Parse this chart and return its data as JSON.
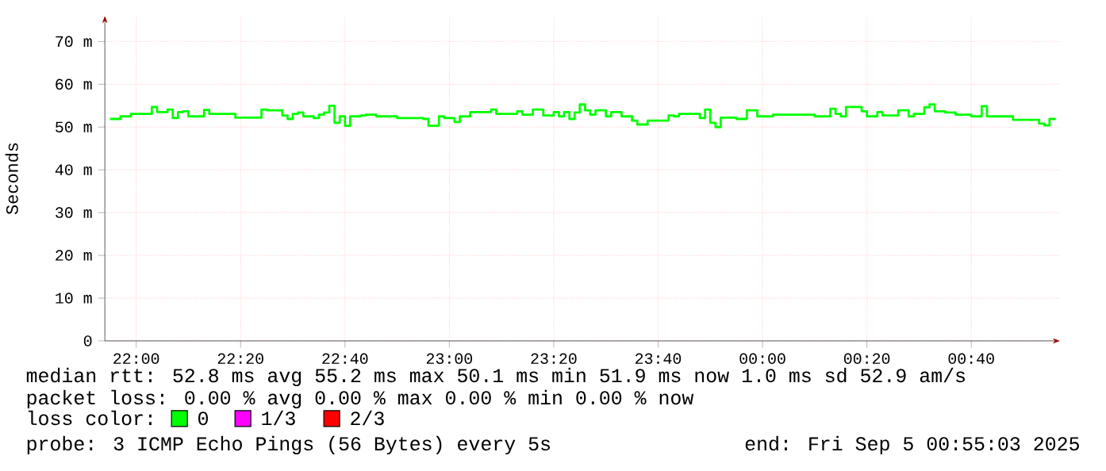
{
  "chart_data": {
    "type": "step",
    "ylabel": "Seconds",
    "x": [
      "2025-09-04T21:55",
      "2025-09-04T21:57",
      "2025-09-04T21:59",
      "2025-09-04T22:02",
      "2025-09-04T22:03",
      "2025-09-04T22:04",
      "2025-09-04T22:06",
      "2025-09-04T22:07",
      "2025-09-04T22:08",
      "2025-09-04T22:09",
      "2025-09-04T22:10",
      "2025-09-04T22:12",
      "2025-09-04T22:13",
      "2025-09-04T22:14",
      "2025-09-04T22:17",
      "2025-09-04T22:19",
      "2025-09-04T22:23",
      "2025-09-04T22:24",
      "2025-09-04T22:25",
      "2025-09-04T22:28",
      "2025-09-04T22:29",
      "2025-09-04T22:30",
      "2025-09-04T22:31",
      "2025-09-04T22:32",
      "2025-09-04T22:34",
      "2025-09-04T22:35",
      "2025-09-04T22:36",
      "2025-09-04T22:37",
      "2025-09-04T22:38",
      "2025-09-04T22:39",
      "2025-09-04T22:40",
      "2025-09-04T22:41",
      "2025-09-04T22:43",
      "2025-09-04T22:44",
      "2025-09-04T22:46",
      "2025-09-04T22:49",
      "2025-09-04T22:50",
      "2025-09-04T22:53",
      "2025-09-04T22:55",
      "2025-09-04T22:56",
      "2025-09-04T22:58",
      "2025-09-04T22:59",
      "2025-09-04T23:01",
      "2025-09-04T23:02",
      "2025-09-04T23:04",
      "2025-09-04T23:08",
      "2025-09-04T23:09",
      "2025-09-04T23:13",
      "2025-09-04T23:14",
      "2025-09-04T23:16",
      "2025-09-04T23:18",
      "2025-09-04T23:20",
      "2025-09-04T23:21",
      "2025-09-04T23:22",
      "2025-09-04T23:23",
      "2025-09-04T23:24",
      "2025-09-04T23:25",
      "2025-09-04T23:26",
      "2025-09-04T23:27",
      "2025-09-04T23:28",
      "2025-09-04T23:30",
      "2025-09-04T23:31",
      "2025-09-04T23:33",
      "2025-09-04T23:35",
      "2025-09-04T23:36",
      "2025-09-04T23:38",
      "2025-09-04T23:41",
      "2025-09-04T23:42",
      "2025-09-04T23:43",
      "2025-09-04T23:44",
      "2025-09-04T23:47",
      "2025-09-04T23:48",
      "2025-09-04T23:49",
      "2025-09-04T23:50",
      "2025-09-04T23:51",
      "2025-09-04T23:52",
      "2025-09-04T23:55",
      "2025-09-04T23:57",
      "2025-09-04T23:59",
      "2025-09-05T00:01",
      "2025-09-05T00:02",
      "2025-09-05T00:07",
      "2025-09-05T00:10",
      "2025-09-05T00:13",
      "2025-09-05T00:14",
      "2025-09-05T00:15",
      "2025-09-05T00:16",
      "2025-09-05T00:19",
      "2025-09-05T00:20",
      "2025-09-05T00:22",
      "2025-09-05T00:23",
      "2025-09-05T00:26",
      "2025-09-05T00:28",
      "2025-09-05T00:29",
      "2025-09-05T00:31",
      "2025-09-05T00:32",
      "2025-09-05T00:33",
      "2025-09-05T00:35",
      "2025-09-05T00:37",
      "2025-09-05T00:40",
      "2025-09-05T00:42",
      "2025-09-05T00:43",
      "2025-09-05T00:47",
      "2025-09-05T00:48",
      "2025-09-05T00:52",
      "2025-09-05T00:53",
      "2025-09-05T00:54",
      "2025-09-05T00:55",
      "2025-09-05T00:56"
    ],
    "series": [
      {
        "name": "0",
        "color": "#00ff00",
        "values": [
          51.9,
          52.5,
          53.1,
          53.1,
          54.7,
          53.5,
          54.1,
          52.1,
          53.5,
          53.7,
          52.5,
          52.5,
          54.0,
          53.1,
          53.1,
          52.2,
          52.2,
          54.1,
          53.9,
          52.7,
          51.9,
          53.1,
          53.4,
          52.5,
          52.1,
          52.9,
          53.4,
          55.0,
          51.0,
          52.5,
          50.3,
          52.5,
          52.7,
          52.9,
          52.5,
          52.5,
          52.1,
          52.1,
          51.9,
          50.3,
          52.5,
          52.1,
          51.2,
          52.5,
          53.5,
          54.1,
          53.1,
          53.7,
          52.9,
          54.1,
          52.7,
          53.5,
          52.5,
          53.5,
          51.9,
          53.4,
          55.3,
          53.9,
          52.9,
          53.9,
          52.5,
          53.5,
          52.5,
          51.5,
          50.6,
          51.5,
          51.5,
          52.7,
          52.5,
          53.1,
          53.1,
          52.1,
          54.1,
          51.0,
          50.0,
          52.2,
          51.9,
          53.9,
          52.5,
          52.5,
          52.9,
          52.9,
          52.5,
          54.3,
          53.1,
          52.5,
          54.7,
          53.7,
          52.5,
          53.5,
          52.7,
          53.9,
          52.5,
          53.1,
          54.6,
          55.3,
          53.7,
          53.4,
          52.9,
          52.5,
          54.9,
          52.5,
          52.5,
          51.7,
          51.7,
          50.8,
          50.4,
          51.9,
          52.1
        ]
      },
      {
        "name": "1/3",
        "color": "#ff00ff",
        "values": [
          null,
          null,
          null,
          null,
          null,
          null,
          null,
          null,
          null,
          null,
          null,
          null,
          null,
          null,
          null,
          null,
          null,
          null,
          null,
          null,
          null,
          null,
          null,
          null,
          null,
          null,
          null,
          null,
          null,
          null,
          null,
          null,
          null,
          null,
          null,
          null,
          null,
          null,
          null,
          null,
          null,
          null,
          null,
          null,
          null,
          null,
          null,
          null,
          null,
          null,
          null,
          null,
          null,
          null,
          null,
          null,
          null,
          null,
          null,
          null,
          null,
          null,
          null,
          null,
          null,
          null,
          null,
          null,
          null,
          null,
          null,
          null,
          null,
          null,
          null,
          null,
          null,
          null,
          null,
          null,
          null,
          null,
          null,
          null,
          null,
          null,
          null,
          null,
          null,
          null,
          null,
          null,
          null,
          null,
          null,
          null,
          null,
          null,
          null,
          null,
          null,
          null,
          null,
          null,
          null,
          null,
          null,
          null,
          null
        ]
      },
      {
        "name": "2/3",
        "color": "#ff0000",
        "values": [
          null,
          null,
          null,
          null,
          null,
          null,
          null,
          null,
          null,
          null,
          null,
          null,
          null,
          null,
          null,
          null,
          null,
          null,
          null,
          null,
          null,
          null,
          null,
          null,
          null,
          null,
          null,
          null,
          null,
          null,
          null,
          null,
          null,
          null,
          null,
          null,
          null,
          null,
          null,
          null,
          null,
          null,
          null,
          null,
          null,
          null,
          null,
          null,
          null,
          null,
          null,
          null,
          null,
          null,
          null,
          null,
          null,
          null,
          null,
          null,
          null,
          null,
          null,
          null,
          null,
          null,
          null,
          null,
          null,
          null,
          null,
          null,
          null,
          null,
          null,
          null,
          null,
          null,
          null,
          null,
          null,
          null,
          null,
          null,
          null,
          null,
          null,
          null,
          null,
          null,
          null,
          null,
          null,
          null,
          null,
          null,
          null,
          null,
          null,
          null,
          null,
          null,
          null,
          null,
          null,
          null,
          null,
          null,
          null
        ]
      }
    ],
    "xlim": [
      "2025-09-04T21:54",
      "2025-09-05T00:57"
    ],
    "ylim": [
      0,
      76
    ],
    "xticks": [
      {
        "value": "2025-09-04T22:00",
        "label": "22:00"
      },
      {
        "value": "2025-09-04T22:20",
        "label": "22:20"
      },
      {
        "value": "2025-09-04T22:40",
        "label": "22:40"
      },
      {
        "value": "2025-09-04T23:00",
        "label": "23:00"
      },
      {
        "value": "2025-09-04T23:20",
        "label": "23:20"
      },
      {
        "value": "2025-09-04T23:40",
        "label": "23:40"
      },
      {
        "value": "2025-09-05T00:00",
        "label": "00:00"
      },
      {
        "value": "2025-09-05T00:20",
        "label": "00:20"
      },
      {
        "value": "2025-09-05T00:40",
        "label": "00:40"
      }
    ],
    "yticks": [
      0,
      {
        "value": 10,
        "label": "10 m"
      },
      {
        "value": 20,
        "label": "20 m"
      },
      {
        "value": 30,
        "label": "30 m"
      },
      {
        "value": 40,
        "label": "40 m"
      },
      {
        "value": 50,
        "label": "50 m"
      },
      {
        "value": 60,
        "label": "60 m"
      },
      {
        "value": 70,
        "label": "70 m"
      }
    ],
    "grid": true,
    "legend": "bottom",
    "legend_title": "loss color:",
    "annotations": [
      "median rtt: 52.8 ms avg 55.2 ms max 50.1 ms min 51.9 ms now 1.0 ms sd 52.9 am/s",
      "packet loss: 0.00 % avg 0.00 % max 0.00 % min 0.00 % now",
      "probe: 3 ICMP Echo Pings (56 Bytes) every 5s",
      "end: Fri Sep 5 00:55:03 2025"
    ]
  }
}
